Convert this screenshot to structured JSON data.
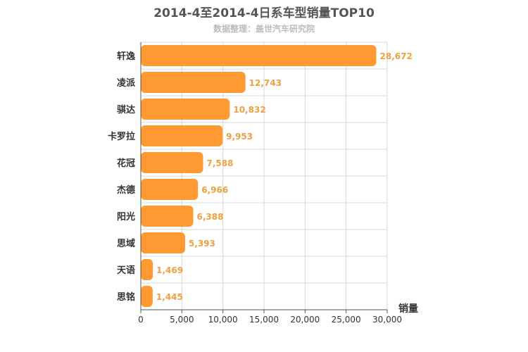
{
  "chart_data": {
    "type": "bar",
    "orientation": "horizontal",
    "title": "2014-4至2014-4日系车型销量TOP10",
    "subtitle": "数据整理：盖世汽车研究院",
    "xlabel": "销量",
    "categories": [
      "轩逸",
      "凌派",
      "骐达",
      "卡罗拉",
      "花冠",
      "杰德",
      "阳光",
      "思域",
      "天语",
      "思铭"
    ],
    "values": [
      28672,
      12743,
      10832,
      9953,
      7588,
      6966,
      6388,
      5393,
      1469,
      1445
    ],
    "value_labels": [
      "28,672",
      "12,743",
      "10,832",
      "9,953",
      "7,588",
      "6,966",
      "6,388",
      "5,393",
      "1,469",
      "1,445"
    ],
    "xlim": [
      0,
      30000
    ],
    "xticks": [
      0,
      5000,
      10000,
      15000,
      20000,
      25000,
      30000
    ],
    "xtick_labels": [
      "0",
      "5,000",
      "10,000",
      "15,000",
      "20,000",
      "25,000",
      "30,000"
    ],
    "bar_color": "#ff9a33",
    "label_color": "#f0a040",
    "grid": true
  }
}
